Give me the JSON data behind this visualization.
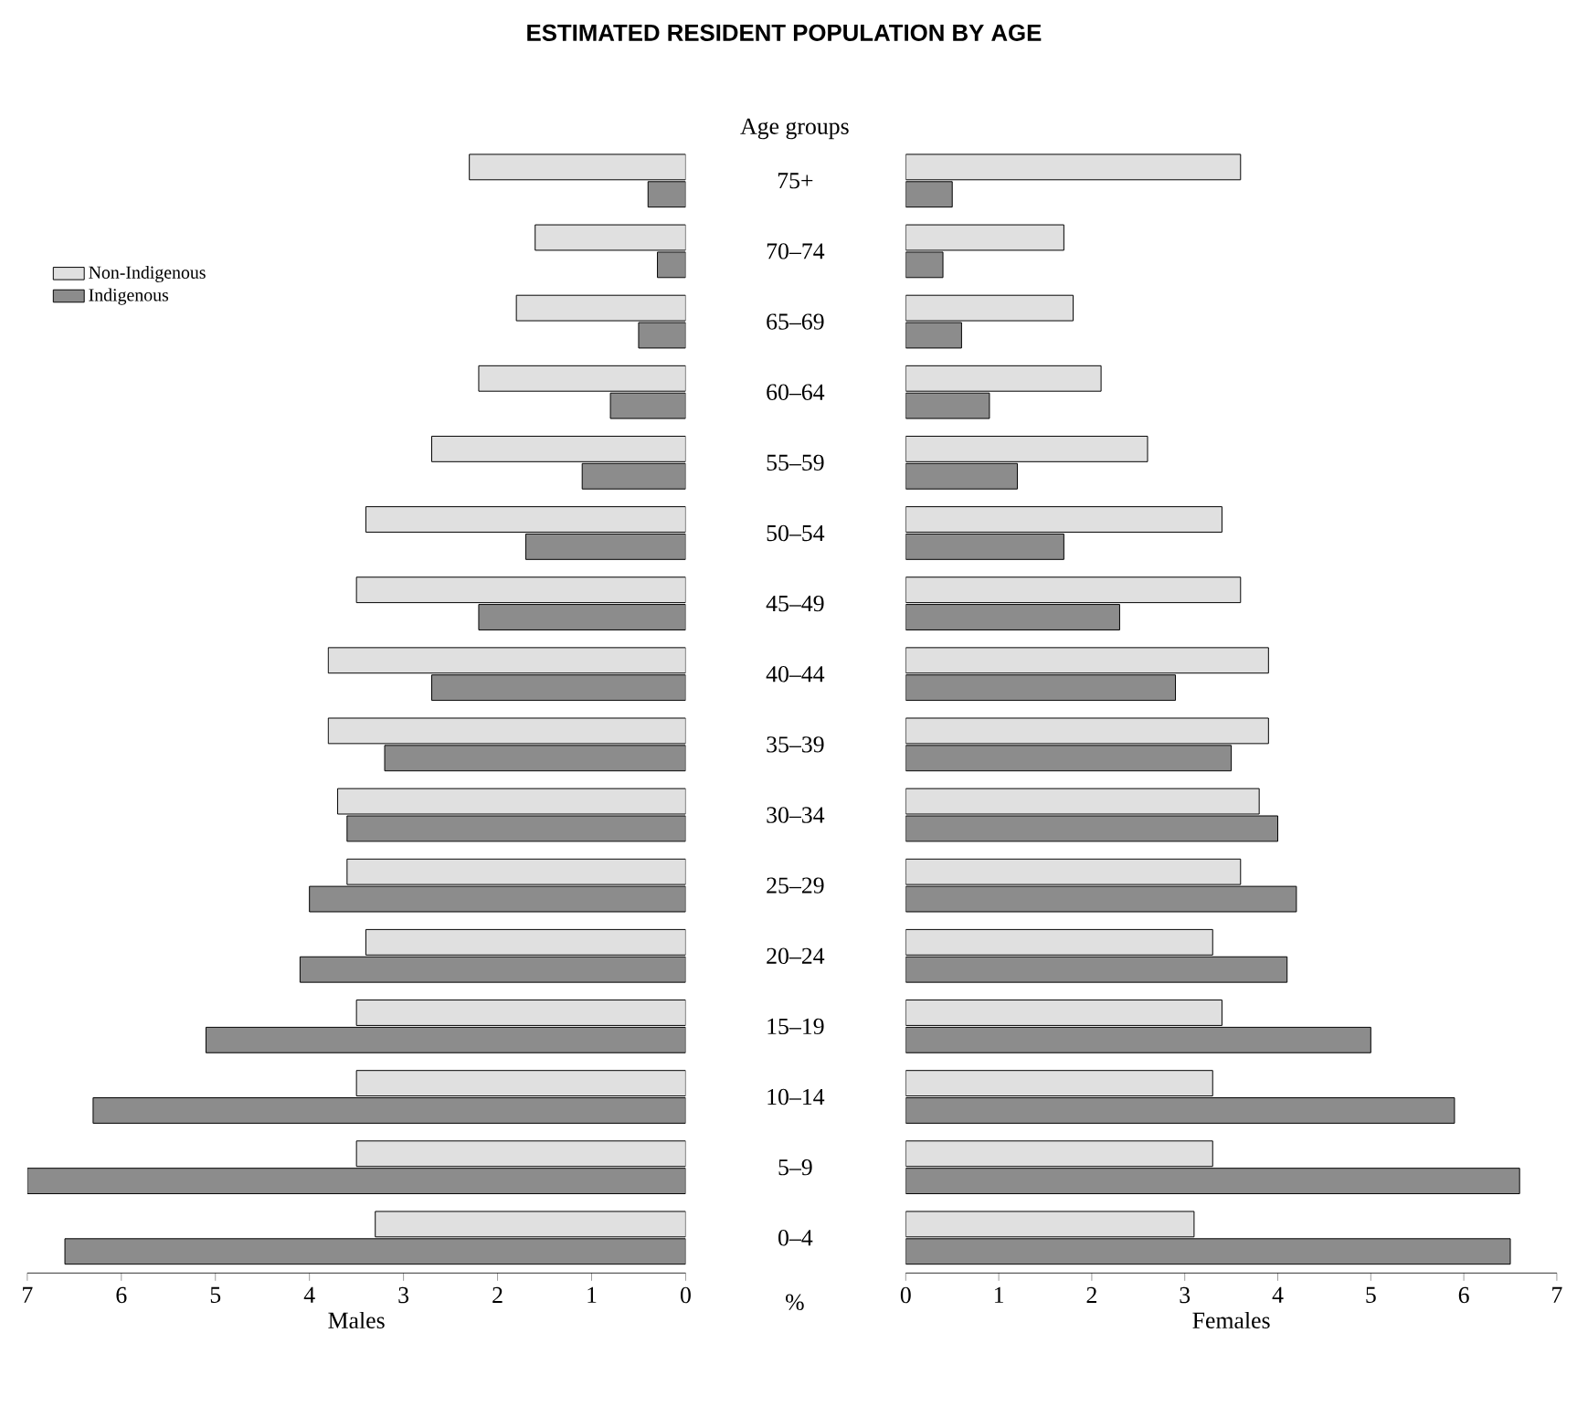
{
  "chart_data": [
    {
      "type": "bar",
      "orientation": "horizontal",
      "title": "ESTIMATED RESIDENT POPULATION BY AGE",
      "xlabel": "Males",
      "ylabel": "Age groups",
      "annotations": [
        "%"
      ],
      "categories": [
        "75+",
        "70–74",
        "65–69",
        "60–64",
        "55–59",
        "50–54",
        "45–49",
        "40–44",
        "35–39",
        "30–34",
        "25–29",
        "20–24",
        "15–19",
        "10–14",
        "5–9",
        "0–4"
      ],
      "series": [
        {
          "name": "Non-Indigenous",
          "color": "#e0e0e0",
          "values": [
            2.3,
            1.6,
            1.8,
            2.2,
            2.7,
            3.4,
            3.5,
            3.8,
            3.8,
            3.7,
            3.6,
            3.4,
            3.5,
            3.5,
            3.5,
            3.3
          ]
        },
        {
          "name": "Indigenous",
          "color": "#8c8c8c",
          "values": [
            0.4,
            0.3,
            0.5,
            0.8,
            1.1,
            1.7,
            2.2,
            2.7,
            3.2,
            3.6,
            4.0,
            4.1,
            5.1,
            6.3,
            7.0,
            6.6
          ]
        }
      ],
      "xlim": [
        7,
        0
      ],
      "xticks": [
        0,
        1,
        2,
        3,
        4,
        5,
        6,
        7
      ],
      "legend": "top left"
    },
    {
      "type": "bar",
      "orientation": "horizontal",
      "xlabel": "Females",
      "tick_labels": "x",
      "series": [
        {
          "color": "#e0e0e0",
          "values": [
            3.6,
            1.7,
            1.8,
            2.1,
            2.6,
            3.4,
            3.6,
            3.9,
            3.9,
            3.8,
            3.6,
            3.3,
            3.4,
            3.3,
            3.3,
            3.1
          ]
        },
        {
          "color": "#8c8c8c",
          "values": [
            0.5,
            0.4,
            0.6,
            0.9,
            1.2,
            1.7,
            2.3,
            2.9,
            3.5,
            4.0,
            4.2,
            4.1,
            5.0,
            5.9,
            6.6,
            6.5
          ]
        }
      ],
      "xlim": [
        0,
        7
      ],
      "xticks": [
        0,
        1,
        2,
        3,
        4,
        5,
        6,
        7
      ]
    }
  ]
}
